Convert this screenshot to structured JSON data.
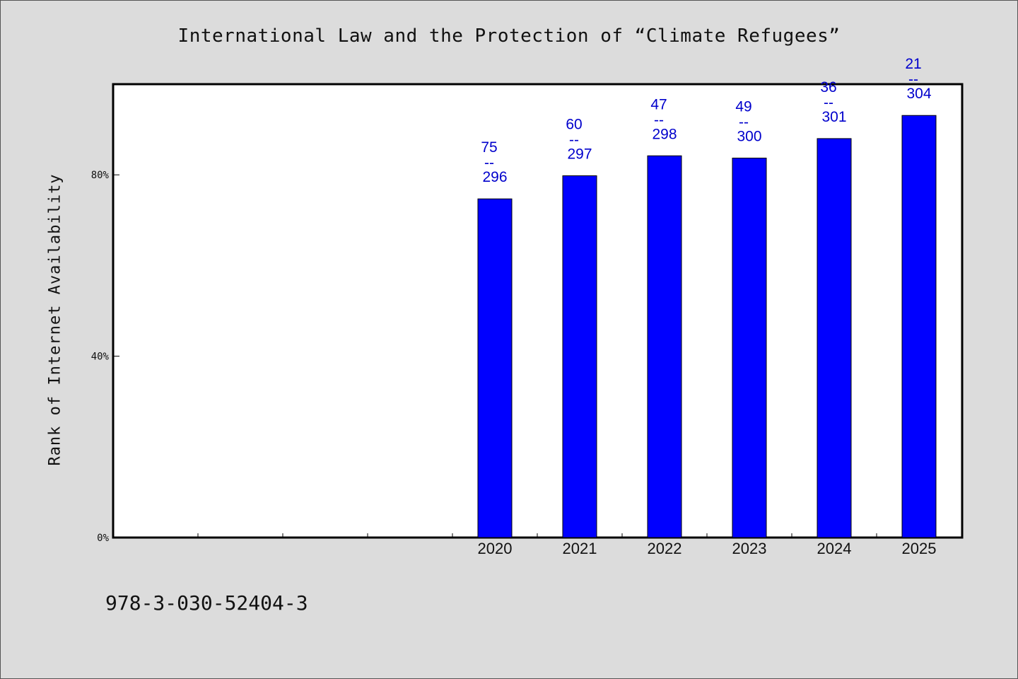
{
  "chart_data": {
    "type": "bar",
    "title": "International Law and the Protection of “Climate Refugees”",
    "xlabel": "",
    "ylabel": "Rank of Internet Availability",
    "categories": [
      "",
      "",
      "",
      "",
      "2020",
      "2021",
      "2022",
      "2023",
      "2024",
      "2025"
    ],
    "values": [
      null,
      null,
      null,
      null,
      74.7,
      79.8,
      84.2,
      83.7,
      88.0,
      93.1
    ],
    "data_labels": [
      {
        "top": "75",
        "sep": "--",
        "bottom": "296"
      },
      {
        "top": "60",
        "sep": "--",
        "bottom": "297"
      },
      {
        "top": "47",
        "sep": "--",
        "bottom": "298"
      },
      {
        "top": "49",
        "sep": "--",
        "bottom": "300"
      },
      {
        "top": "36",
        "sep": "--",
        "bottom": "301"
      },
      {
        "top": "21",
        "sep": "--",
        "bottom": "304"
      }
    ],
    "yticks": [
      {
        "value": 0,
        "label": "0%"
      },
      {
        "value": 40,
        "label": "40%"
      },
      {
        "value": 80,
        "label": "80%"
      }
    ],
    "ylim": [
      0,
      100
    ],
    "grid": false,
    "colors": {
      "bar": "#0000ff",
      "label": "#0000cc",
      "background": "#dcdcdc",
      "plot": "#ffffff"
    }
  },
  "footer": {
    "id": "978-3-030-52404-3"
  }
}
